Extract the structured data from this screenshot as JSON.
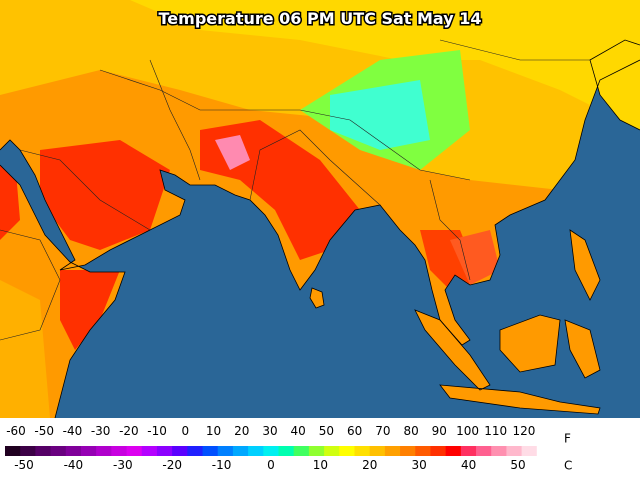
{
  "title": "Temperature 06 PM UTC Sat May 14",
  "legend": {
    "fahrenheit": {
      "unit": "F",
      "ticks": [
        -60,
        -50,
        -40,
        -30,
        -20,
        -10,
        0,
        10,
        20,
        30,
        40,
        50,
        60,
        70,
        80,
        90,
        100,
        110,
        120
      ]
    },
    "celsius": {
      "unit": "C",
      "ticks": [
        -50,
        -40,
        -30,
        -20,
        -10,
        0,
        10,
        20,
        30,
        40,
        50
      ]
    },
    "colors": [
      "#200020",
      "#3c0046",
      "#550066",
      "#6a0080",
      "#80009a",
      "#9600b4",
      "#b000cc",
      "#c800e0",
      "#dc00f0",
      "#b400ff",
      "#8c00ff",
      "#5a00ff",
      "#2020ff",
      "#0050ff",
      "#0080ff",
      "#00a8ff",
      "#00d0ff",
      "#00f0f0",
      "#00ffb0",
      "#40ff60",
      "#90ff30",
      "#d0ff10",
      "#ffff00",
      "#ffe000",
      "#ffc000",
      "#ffa000",
      "#ff8000",
      "#ff5a00",
      "#ff3000",
      "#ff0000",
      "#ff3060",
      "#ff6090",
      "#ff90b0",
      "#ffb8cc",
      "#ffdce6",
      "#ffffff"
    ]
  }
}
